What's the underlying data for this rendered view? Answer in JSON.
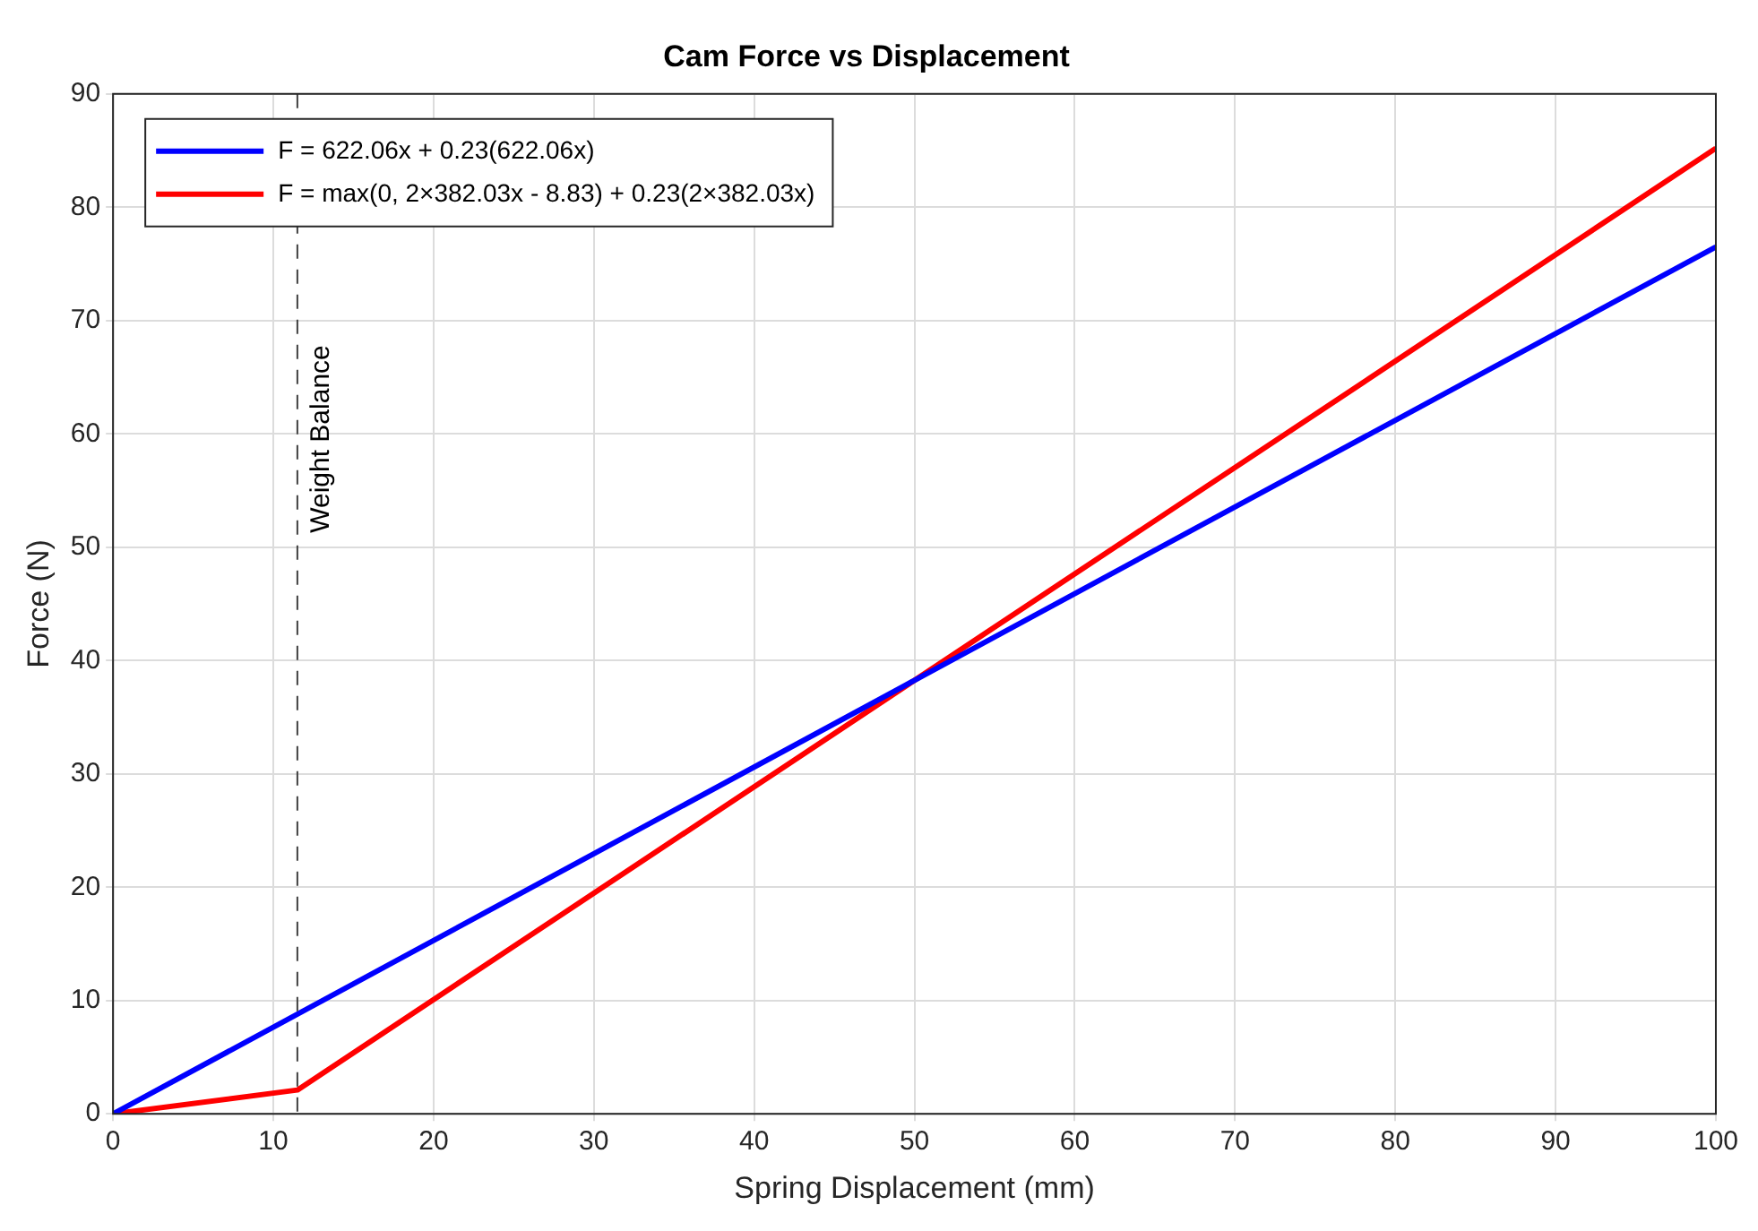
{
  "chart_data": {
    "type": "line",
    "title": "Cam Force vs Displacement",
    "xlabel": "Spring Displacement (mm)",
    "ylabel": "Force (N)",
    "series": [
      {
        "name": "F = 622.06x + 0.23(622.06x)",
        "color": "#0000ff",
        "x": [
          0,
          100
        ],
        "values": [
          0,
          76.5
        ]
      },
      {
        "name": "F = max(0, 2×382.03x - 8.83) + 0.23(2×382.03x)",
        "color": "#ff0000",
        "x": [
          0,
          11.5,
          100
        ],
        "values": [
          0,
          2.1,
          85.2
        ]
      }
    ],
    "xlim": [
      0,
      100
    ],
    "xticks": [
      0,
      10,
      20,
      30,
      40,
      50,
      60,
      70,
      80,
      90,
      100
    ],
    "ylim": [
      0,
      90
    ],
    "yticks": [
      0,
      10,
      20,
      30,
      40,
      50,
      60,
      70,
      80,
      90
    ],
    "ref_lines": [
      {
        "axis": "x",
        "value": 11.5,
        "label": "Weight Balance",
        "color": "#404040",
        "line_style": "dashed"
      }
    ],
    "grid": true,
    "legend": "top left",
    "marker": "none",
    "line_style": "solid"
  }
}
